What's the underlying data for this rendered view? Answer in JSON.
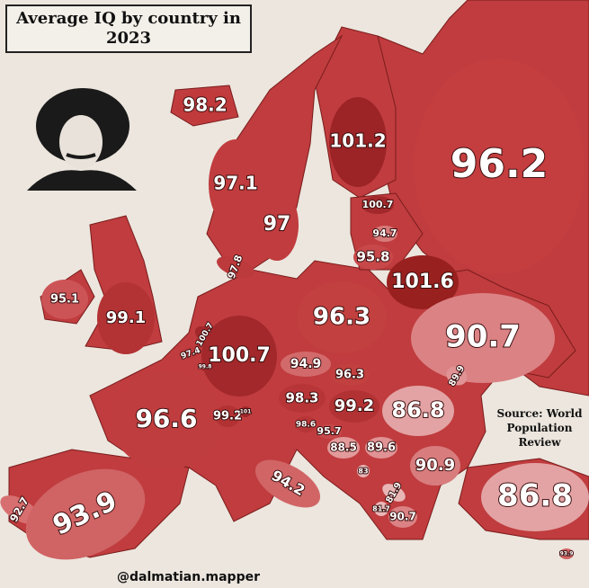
{
  "title": "Average IQ by country in 2023",
  "source": "Source: World Population Review",
  "credit": "@dalmatian.mapper",
  "regions": [
    {
      "value": 98.2,
      "color": "#c0393b"
    },
    {
      "value": 97.1,
      "color": "#c03c3e"
    },
    {
      "value": 97,
      "color": "#c03c3e"
    },
    {
      "value": 101.2,
      "color": "#9c2326"
    },
    {
      "value": 96.2,
      "color": "#c43d3f"
    },
    {
      "value": 100.7,
      "color": "#a2282b"
    },
    {
      "value": 94.7,
      "color": "#d77a7a"
    },
    {
      "value": 95.8,
      "color": "#c8484a"
    },
    {
      "value": 101.6,
      "color": "#98201f"
    },
    {
      "value": 97.8,
      "color": "#bd3a3c"
    },
    {
      "value": 95.1,
      "color": "#cc5456"
    },
    {
      "value": 99.1,
      "color": "#b33234"
    },
    {
      "value": 96.3,
      "color": "#c2403f"
    },
    {
      "value": 90.7,
      "color": "#db8284"
    },
    {
      "value": 100.7,
      "color": "#a2282b"
    },
    {
      "value": 97.4,
      "color": "#bd3a3c"
    },
    {
      "value": 99.8,
      "color": "#ac2e30"
    },
    {
      "value": 100.7,
      "color": "#a2282b"
    },
    {
      "value": 94.9,
      "color": "#d26a6b"
    },
    {
      "value": 89.9,
      "color": "#e09294"
    },
    {
      "value": 96.3,
      "color": "#c2403f"
    },
    {
      "value": 98.3,
      "color": "#b83537"
    },
    {
      "value": 99.2,
      "color": "#b23234"
    },
    {
      "value": 86.8,
      "color": "#e3a3a4"
    },
    {
      "value": 96.6,
      "color": "#c03d3f"
    },
    {
      "value": 99.2,
      "color": "#b23234"
    },
    {
      "value": 101,
      "color": "#9e2629"
    },
    {
      "value": 98.6,
      "color": "#b73537"
    },
    {
      "value": 95.7,
      "color": "#c8494b"
    },
    {
      "value": 88.5,
      "color": "#e29a9b"
    },
    {
      "value": 89.6,
      "color": "#e09294"
    },
    {
      "value": 90.9,
      "color": "#d87c7e"
    },
    {
      "value": 94.2,
      "color": "#d16566"
    },
    {
      "value": 83,
      "color": "#e7b2b3"
    },
    {
      "value": 81.9,
      "color": "#e9b6b6"
    },
    {
      "value": 81.7,
      "color": "#eab8b8"
    },
    {
      "value": 90.7,
      "color": "#db8284"
    },
    {
      "value": 86.8,
      "color": "#e3a3a4"
    },
    {
      "value": 92.7,
      "color": "#d76f70"
    },
    {
      "value": 93.9,
      "color": "#d06364"
    },
    {
      "value": 93.9,
      "color": "#d06364"
    }
  ]
}
